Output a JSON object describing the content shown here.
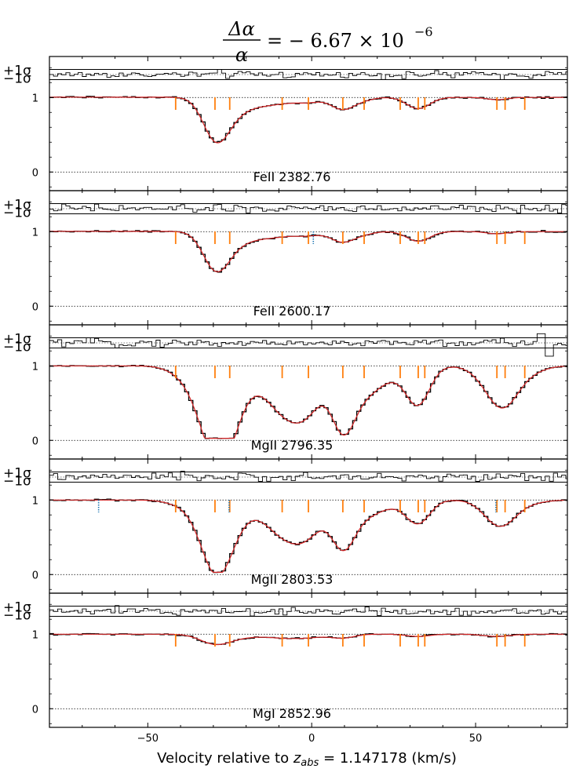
{
  "chart_data": {
    "type": "line",
    "title": {
      "lhs_numerator": "Δα",
      "lhs_denominator": "α",
      "rhs": "= − 6.67 × 10",
      "exponent": "−6"
    },
    "xlabel": {
      "prefix": "Velocity relative to ",
      "z_main": "z",
      "z_sub": "abs",
      "suffix": " = 1.147178 (km/s)"
    },
    "xlim": [
      -80,
      78
    ],
    "xticks": [
      -50,
      0,
      50
    ],
    "x_tick_labels": [
      "−50",
      "0",
      "50"
    ],
    "yticks": [
      0,
      1
    ],
    "y_tick_labels": [
      "0",
      "1"
    ],
    "ylim": [
      -0.25,
      1.55
    ],
    "residual_labels": [
      "+1σ",
      "−1σ"
    ],
    "component_velocities": [
      -41.5,
      -29.5,
      -25,
      -9,
      -1,
      9.5,
      16,
      27,
      32.5,
      34.5,
      56.5,
      59,
      65
    ],
    "panels": [
      {
        "label": "FeII 2382.76",
        "continuum_slope": 0.0006,
        "absorption_lines": [
          {
            "v": -29.5,
            "depth": 0.5,
            "width": 3.8
          },
          {
            "v": -25,
            "depth": 0.12,
            "width": 4
          },
          {
            "v": -20,
            "depth": 0.12,
            "width": 6
          },
          {
            "v": -10,
            "depth": 0.06,
            "width": 5
          },
          {
            "v": -1,
            "depth": 0.06,
            "width": 4
          },
          {
            "v": 9.5,
            "depth": 0.16,
            "width": 3.5
          },
          {
            "v": 16,
            "depth": 0.03,
            "width": 3
          },
          {
            "v": 32.5,
            "depth": 0.15,
            "width": 3.5
          },
          {
            "v": 56.5,
            "depth": 0.03,
            "width": 3
          }
        ],
        "extra_markers": []
      },
      {
        "label": "FeII 2600.17",
        "continuum_slope": 0.0006,
        "absorption_lines": [
          {
            "v": -29.5,
            "depth": 0.45,
            "width": 3.8
          },
          {
            "v": -25,
            "depth": 0.1,
            "width": 4
          },
          {
            "v": -20,
            "depth": 0.1,
            "width": 6
          },
          {
            "v": -10,
            "depth": 0.05,
            "width": 5
          },
          {
            "v": -1,
            "depth": 0.05,
            "width": 4
          },
          {
            "v": 9.5,
            "depth": 0.14,
            "width": 3.5
          },
          {
            "v": 16,
            "depth": 0.03,
            "width": 3
          },
          {
            "v": 32.5,
            "depth": 0.13,
            "width": 3.5
          },
          {
            "v": 56.5,
            "depth": 0.03,
            "width": 3
          }
        ],
        "extra_markers": [
          0.5
        ]
      },
      {
        "label": "MgII 2796.35",
        "continuum_slope": 0.0,
        "absorption_lines": [
          {
            "v": -29.5,
            "depth": 0.92,
            "width": 5
          },
          {
            "v": -25,
            "depth": 0.5,
            "width": 5
          },
          {
            "v": -38,
            "depth": 0.12,
            "width": 5
          },
          {
            "v": -9,
            "depth": 0.55,
            "width": 6
          },
          {
            "v": -1,
            "depth": 0.45,
            "width": 5
          },
          {
            "v": 9.5,
            "depth": 0.72,
            "width": 3.5
          },
          {
            "v": 16,
            "depth": 0.35,
            "width": 5
          },
          {
            "v": 27,
            "depth": 0.12,
            "width": 6
          },
          {
            "v": 32.5,
            "depth": 0.45,
            "width": 3.5
          },
          {
            "v": 56.5,
            "depth": 0.35,
            "width": 5
          },
          {
            "v": 59,
            "depth": 0.2,
            "width": 4
          },
          {
            "v": 65,
            "depth": 0.1,
            "width": 5
          }
        ],
        "extra_markers": []
      },
      {
        "label": "MgII 2803.53",
        "continuum_slope": 0.0,
        "absorption_lines": [
          {
            "v": -29.5,
            "depth": 0.78,
            "width": 4.5
          },
          {
            "v": -25,
            "depth": 0.3,
            "width": 5
          },
          {
            "v": -38,
            "depth": 0.08,
            "width": 5
          },
          {
            "v": -9,
            "depth": 0.42,
            "width": 6
          },
          {
            "v": -1,
            "depth": 0.35,
            "width": 5
          },
          {
            "v": 9.5,
            "depth": 0.55,
            "width": 3.5
          },
          {
            "v": 16,
            "depth": 0.2,
            "width": 5
          },
          {
            "v": 27,
            "depth": 0.06,
            "width": 6
          },
          {
            "v": 32.5,
            "depth": 0.28,
            "width": 3.5
          },
          {
            "v": 56.5,
            "depth": 0.25,
            "width": 4.5
          },
          {
            "v": 59,
            "depth": 0.1,
            "width": 4
          },
          {
            "v": 65,
            "depth": 0.05,
            "width": 5
          }
        ],
        "extra_markers": [
          -65,
          -25.2,
          56.2
        ]
      },
      {
        "label": "MgI 2852.96",
        "continuum_slope": 0.0,
        "absorption_lines": [
          {
            "v": -29.5,
            "depth": 0.12,
            "width": 4.5
          },
          {
            "v": -22,
            "depth": 0.04,
            "width": 6
          },
          {
            "v": -9,
            "depth": 0.04,
            "width": 5
          },
          {
            "v": -1,
            "depth": 0.04,
            "width": 5
          },
          {
            "v": 9.5,
            "depth": 0.05,
            "width": 3.5
          },
          {
            "v": 32.5,
            "depth": 0.03,
            "width": 3.5
          },
          {
            "v": 56.5,
            "depth": 0.03,
            "width": 4
          }
        ],
        "extra_markers": []
      }
    ],
    "colors": {
      "data": "#000000",
      "model": "#d62728",
      "components": "#ff7f0e",
      "extra_markers": "#1f77b4"
    }
  }
}
